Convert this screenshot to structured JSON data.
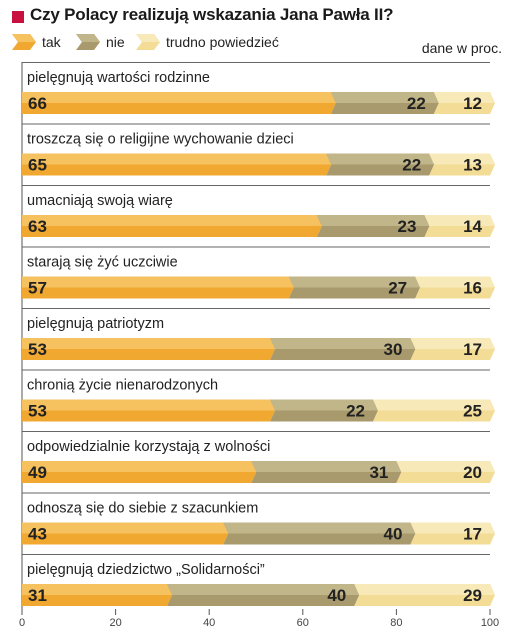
{
  "chart_data": {
    "type": "bar",
    "orientation": "horizontal",
    "stacked": true,
    "title": "Czy Polacy realizują wskazania Jana Pawła II?",
    "unit_note": "dane w proc.",
    "categories": [
      "pielęgnują wartości rodzinne",
      "troszczą się o religijne wychowanie dzieci",
      "umacniają swoją wiarę",
      "starają się żyć uczciwie",
      "pielęgnują patriotyzm",
      "chronią życie nienarodzonych",
      "odpowiedzialnie korzystają z wolności",
      "odnoszą się do siebie z szacunkiem",
      "pielęgnują dziedzictwo „Solidarności”"
    ],
    "series": [
      {
        "name": "tak",
        "color": "#f0a830",
        "values": [
          66,
          65,
          63,
          57,
          53,
          53,
          49,
          43,
          31
        ]
      },
      {
        "name": "nie",
        "color": "#a89a6c",
        "values": [
          22,
          22,
          23,
          27,
          30,
          22,
          31,
          40,
          40
        ]
      },
      {
        "name": "trudno powiedzieć",
        "color": "#f2dc96",
        "values": [
          12,
          13,
          14,
          16,
          17,
          25,
          20,
          17,
          29
        ]
      }
    ],
    "xlim": [
      0,
      100
    ],
    "xticks": [
      0,
      20,
      40,
      60,
      80,
      100
    ],
    "legend_position": "top-left",
    "grid": false
  }
}
